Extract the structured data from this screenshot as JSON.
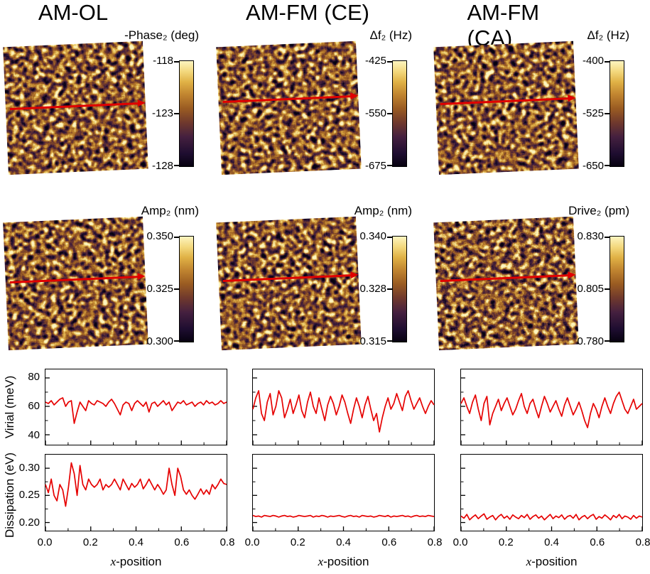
{
  "figure": {
    "headers": [
      "AM-OL",
      "AM-FM (CE)",
      "AM-FM (CA)"
    ]
  },
  "panels": [
    {
      "label": "-Phase₂ (deg)",
      "cbar_ticks": [
        "-118",
        "-123",
        "-128"
      ]
    },
    {
      "label": "Δf₂ (Hz)",
      "cbar_ticks": [
        "-425",
        "-550",
        "-675"
      ]
    },
    {
      "label": "Δf₂ (Hz)",
      "cbar_ticks": [
        "-400",
        "-525",
        "-650"
      ]
    },
    {
      "label": "Amp₂ (nm)",
      "cbar_ticks": [
        "0.350",
        "0.325",
        "0.300"
      ]
    },
    {
      "label": "Amp₂ (nm)",
      "cbar_ticks": [
        "0.340",
        "0.328",
        "0.315"
      ]
    },
    {
      "label": "Drive₂ (pm)",
      "cbar_ticks": [
        "0.830",
        "0.805",
        "0.780"
      ]
    }
  ],
  "axis": {
    "xlabel_x": "x",
    "xlabel_rest": "-position",
    "xticks": [
      "0.0",
      "0.2",
      "0.4",
      "0.6",
      "0.8"
    ],
    "virial_label": "Virial (meV)",
    "virial_ticks": [
      "80",
      "60",
      "40"
    ],
    "diss_label": "Dissipation (eV)",
    "diss_ticks": [
      "0.30",
      "0.25",
      "0.20"
    ]
  },
  "colors": {
    "line": "#e60000",
    "arrow": "#e00000",
    "cmap": [
      [
        0,
        "#070210"
      ],
      [
        0.12,
        "#1e0d30"
      ],
      [
        0.28,
        "#45203f"
      ],
      [
        0.42,
        "#713a2c"
      ],
      [
        0.55,
        "#9a5c22"
      ],
      [
        0.68,
        "#c08430"
      ],
      [
        0.8,
        "#e0b145"
      ],
      [
        0.9,
        "#f3d87d"
      ],
      [
        1,
        "#fdf5c0"
      ]
    ]
  },
  "chart_data": [
    {
      "type": "line",
      "name": "virial-am-ol",
      "column": "AM-OL",
      "ylabel": "Virial (meV)",
      "xlabel": "x-position",
      "x_range": [
        0,
        0.8
      ],
      "ylim": [
        33,
        86
      ],
      "yticks": [
        40,
        60,
        80
      ],
      "xticks": [
        0,
        0.2,
        0.4,
        0.6,
        0.8
      ],
      "line_color": "#e60000",
      "values": [
        63,
        62,
        64,
        61,
        63,
        65,
        66,
        60,
        63,
        64,
        48,
        56,
        63,
        60,
        57,
        64,
        62,
        61,
        64,
        63,
        62,
        60,
        63,
        65,
        62,
        58,
        54,
        61,
        63,
        62,
        57,
        62,
        64,
        62,
        60,
        63,
        56,
        62,
        63,
        60,
        62,
        64,
        61,
        63,
        57,
        60,
        63,
        62,
        64,
        61,
        62,
        63,
        60,
        62,
        63,
        61,
        64,
        62,
        63,
        61,
        62,
        64,
        62,
        63
      ]
    },
    {
      "type": "line",
      "name": "virial-am-fm-ce",
      "column": "AM-FM (CE)",
      "ylabel": "Virial (meV)",
      "xlabel": "x-position",
      "x_range": [
        0,
        0.8
      ],
      "ylim": [
        33,
        86
      ],
      "yticks": [
        40,
        60,
        80
      ],
      "xticks": [
        0,
        0.2,
        0.4,
        0.6,
        0.8
      ],
      "line_color": "#e60000",
      "values": [
        58,
        66,
        71,
        55,
        50,
        63,
        69,
        54,
        60,
        71,
        66,
        52,
        58,
        65,
        55,
        61,
        68,
        57,
        52,
        63,
        70,
        60,
        55,
        66,
        58,
        50,
        61,
        67,
        62,
        54,
        60,
        68,
        63,
        55,
        48,
        58,
        66,
        60,
        52,
        61,
        67,
        58,
        50,
        55,
        42,
        52,
        60,
        66,
        58,
        62,
        69,
        63,
        57,
        67,
        71,
        64,
        58,
        62,
        66,
        60,
        55,
        60,
        64,
        61
      ]
    },
    {
      "type": "line",
      "name": "virial-am-fm-ca",
      "column": "AM-FM (CA)",
      "ylabel": "Virial (meV)",
      "xlabel": "x-position",
      "x_range": [
        0,
        0.8
      ],
      "ylim": [
        33,
        86
      ],
      "yticks": [
        40,
        60,
        80
      ],
      "xticks": [
        0,
        0.2,
        0.4,
        0.6,
        0.8
      ],
      "line_color": "#e60000",
      "values": [
        62,
        66,
        60,
        55,
        63,
        68,
        58,
        50,
        62,
        67,
        47,
        55,
        60,
        65,
        57,
        62,
        66,
        60,
        54,
        58,
        64,
        69,
        60,
        55,
        62,
        65,
        58,
        52,
        60,
        67,
        62,
        56,
        60,
        64,
        58,
        53,
        61,
        66,
        60,
        54,
        58,
        63,
        57,
        50,
        45,
        55,
        62,
        58,
        52,
        60,
        66,
        60,
        55,
        62,
        67,
        70,
        64,
        58,
        55,
        60,
        65,
        58,
        60,
        62
      ]
    },
    {
      "type": "line",
      "name": "dissipation-am-ol",
      "column": "AM-OL",
      "ylabel": "Dissipation (eV)",
      "xlabel": "x-position",
      "x_range": [
        0,
        0.8
      ],
      "ylim": [
        0.185,
        0.325
      ],
      "yticks": [
        0.2,
        0.25,
        0.3
      ],
      "xticks": [
        0,
        0.2,
        0.4,
        0.6,
        0.8
      ],
      "line_color": "#e60000",
      "values": [
        0.27,
        0.255,
        0.28,
        0.25,
        0.24,
        0.27,
        0.26,
        0.23,
        0.265,
        0.31,
        0.29,
        0.25,
        0.305,
        0.27,
        0.26,
        0.28,
        0.27,
        0.265,
        0.27,
        0.28,
        0.26,
        0.27,
        0.265,
        0.27,
        0.28,
        0.27,
        0.26,
        0.28,
        0.27,
        0.26,
        0.272,
        0.265,
        0.27,
        0.28,
        0.262,
        0.27,
        0.28,
        0.27,
        0.26,
        0.27,
        0.262,
        0.252,
        0.26,
        0.3,
        0.27,
        0.25,
        0.3,
        0.285,
        0.26,
        0.252,
        0.26,
        0.25,
        0.243,
        0.252,
        0.262,
        0.252,
        0.26,
        0.252,
        0.27,
        0.262,
        0.27,
        0.28,
        0.272,
        0.27
      ]
    },
    {
      "type": "line",
      "name": "dissipation-am-fm-ce",
      "column": "AM-FM (CE)",
      "ylabel": "Dissipation (eV)",
      "xlabel": "x-position",
      "x_range": [
        0,
        0.8
      ],
      "ylim": [
        0.185,
        0.325
      ],
      "yticks": [
        0.2,
        0.25,
        0.3
      ],
      "xticks": [
        0,
        0.2,
        0.4,
        0.6,
        0.8
      ],
      "line_color": "#e60000",
      "values": [
        0.213,
        0.211,
        0.212,
        0.21,
        0.213,
        0.212,
        0.211,
        0.213,
        0.212,
        0.21,
        0.212,
        0.213,
        0.211,
        0.212,
        0.21,
        0.211,
        0.213,
        0.212,
        0.211,
        0.212,
        0.213,
        0.21,
        0.212,
        0.211,
        0.213,
        0.212,
        0.21,
        0.212,
        0.211,
        0.212,
        0.213,
        0.211,
        0.21,
        0.212,
        0.213,
        0.211,
        0.212,
        0.21,
        0.213,
        0.212,
        0.211,
        0.212,
        0.21,
        0.211,
        0.213,
        0.212,
        0.211,
        0.213,
        0.21,
        0.212,
        0.211,
        0.212,
        0.213,
        0.211,
        0.212,
        0.21,
        0.212,
        0.213,
        0.211,
        0.212,
        0.211,
        0.213,
        0.212,
        0.211
      ]
    },
    {
      "type": "line",
      "name": "dissipation-am-fm-ca",
      "column": "AM-FM (CA)",
      "ylabel": "Dissipation (eV)",
      "xlabel": "x-position",
      "x_range": [
        0,
        0.8
      ],
      "ylim": [
        0.185,
        0.325
      ],
      "yticks": [
        0.2,
        0.25,
        0.3
      ],
      "xticks": [
        0,
        0.2,
        0.4,
        0.6,
        0.8
      ],
      "line_color": "#e60000",
      "values": [
        0.212,
        0.208,
        0.215,
        0.205,
        0.21,
        0.214,
        0.207,
        0.212,
        0.216,
        0.206,
        0.21,
        0.213,
        0.205,
        0.211,
        0.215,
        0.208,
        0.212,
        0.206,
        0.214,
        0.21,
        0.207,
        0.213,
        0.209,
        0.215,
        0.206,
        0.211,
        0.214,
        0.208,
        0.212,
        0.205,
        0.21,
        0.215,
        0.207,
        0.212,
        0.209,
        0.214,
        0.206,
        0.211,
        0.213,
        0.208,
        0.215,
        0.205,
        0.21,
        0.213,
        0.207,
        0.212,
        0.215,
        0.206,
        0.211,
        0.208,
        0.214,
        0.21,
        0.205,
        0.213,
        0.209,
        0.215,
        0.207,
        0.212,
        0.21,
        0.206,
        0.213,
        0.208,
        0.212,
        0.21
      ]
    }
  ]
}
